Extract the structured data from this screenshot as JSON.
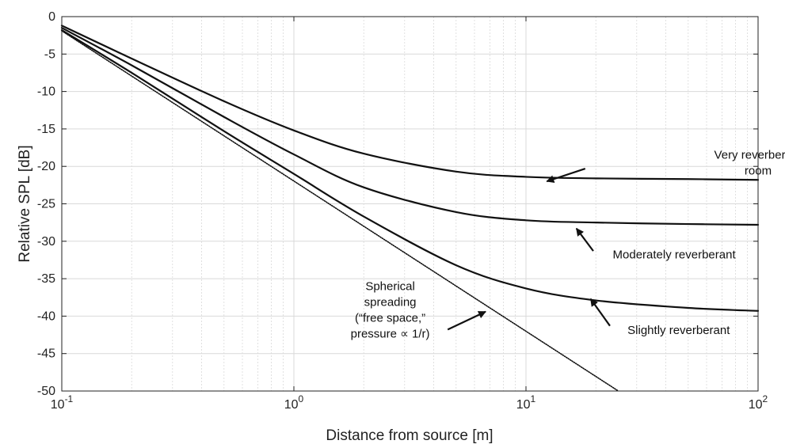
{
  "chart_data": {
    "type": "line",
    "title": "",
    "xlabel": "Distance from source [m]",
    "ylabel": "Relative SPL [dB]",
    "xscale": "log",
    "xlim": [
      0.1,
      100
    ],
    "ylim": [
      -50,
      0
    ],
    "grid": true,
    "x_ticks": [
      {
        "value": 0.1,
        "base": "10",
        "exp": "-1"
      },
      {
        "value": 1,
        "base": "10",
        "exp": "0"
      },
      {
        "value": 10,
        "base": "10",
        "exp": "1"
      },
      {
        "value": 100,
        "base": "10",
        "exp": "2"
      }
    ],
    "y_ticks": [
      0,
      -5,
      -10,
      -15,
      -20,
      -25,
      -30,
      -35,
      -40,
      -45,
      -50
    ],
    "series": [
      {
        "style": "solid",
        "x": [
          0.1,
          0.2,
          0.5,
          1,
          2,
          5,
          10,
          20,
          50,
          100
        ],
        "y": [
          -1.2,
          -5.6,
          -11.3,
          -15.2,
          -18.3,
          -20.7,
          -21.4,
          -21.6,
          -21.7,
          -21.8
        ]
      },
      {
        "style": "solid",
        "x": [
          0.1,
          0.2,
          0.5,
          1,
          2,
          5,
          10,
          20,
          50,
          100
        ],
        "y": [
          -1.5,
          -6.5,
          -13.4,
          -18.4,
          -22.8,
          -26.1,
          -27.2,
          -27.5,
          -27.7,
          -27.8
        ]
      },
      {
        "style": "solid",
        "x": [
          0.1,
          0.2,
          0.5,
          1,
          2,
          5,
          10,
          20,
          50,
          100
        ],
        "y": [
          -1.8,
          -7.5,
          -15.3,
          -21.0,
          -26.7,
          -33.2,
          -36.3,
          -37.9,
          -38.9,
          -39.3
        ]
      },
      {
        "style": "dotted",
        "x": [
          0.1,
          25
        ],
        "y": [
          -1.9,
          -50
        ]
      }
    ],
    "annotations": [
      {
        "id": "very-reverberant",
        "lines": [
          "Very reverberant",
          "room"
        ],
        "x": 100,
        "y": -19.0,
        "anchor": "middle",
        "arrow_from": [
          18,
          -20.3
        ],
        "arrow_to": [
          12.3,
          -22.0
        ]
      },
      {
        "id": "moderately-reverberant",
        "lines": [
          "Moderately reverberant"
        ],
        "x": 43.5,
        "y": -32.3,
        "anchor": "middle",
        "arrow_from": [
          19.5,
          -31.3
        ],
        "arrow_to": [
          16.5,
          -28.3
        ]
      },
      {
        "id": "slightly-reverberant",
        "lines": [
          "Slightly reverberant"
        ],
        "x": 45.5,
        "y": -42.4,
        "anchor": "middle",
        "arrow_from": [
          23,
          -41.3
        ],
        "arrow_to": [
          19.0,
          -37.7
        ]
      },
      {
        "id": "spherical-spreading",
        "lines": [
          "Spherical",
          "spreading",
          "(“free space,”",
          "pressure ∝ 1/r)"
        ],
        "x": 2.6,
        "y": -36.5,
        "anchor": "middle",
        "arrow_from": [
          4.6,
          -41.8
        ],
        "arrow_to": [
          6.7,
          -39.4
        ]
      }
    ]
  }
}
